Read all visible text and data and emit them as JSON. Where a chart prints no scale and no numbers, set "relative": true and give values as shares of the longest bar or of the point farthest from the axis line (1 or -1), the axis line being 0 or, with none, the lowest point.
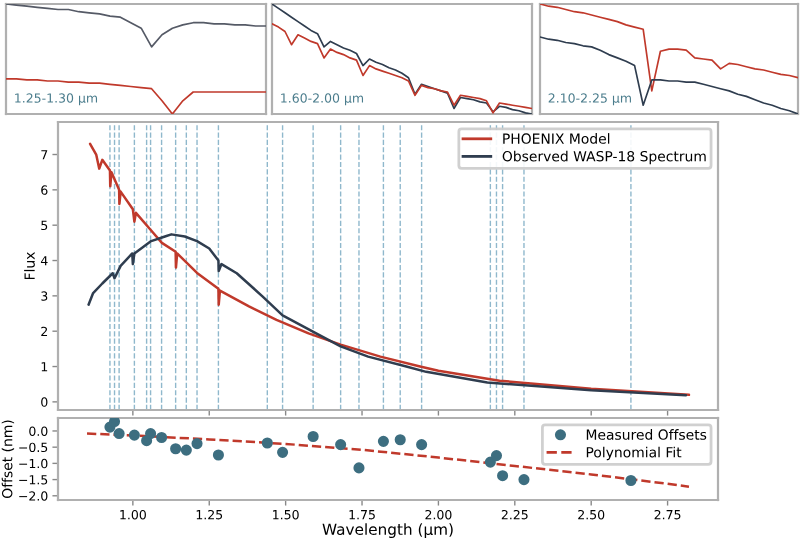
{
  "chart_data": [
    {
      "type": "line",
      "relative": true,
      "tick_labels": false,
      "annotations": [
        "1.25-1.30 μm"
      ],
      "categories": [
        null,
        null,
        null,
        null,
        null,
        null,
        null,
        null,
        null,
        null,
        null,
        null,
        null,
        null,
        null,
        null,
        null,
        null,
        null,
        null,
        null,
        null,
        null,
        null,
        null,
        null
      ],
      "series": [
        {
          "color": "#555a66",
          "values": [
            1.0,
            0.99,
            0.98,
            0.97,
            0.96,
            0.95,
            0.95,
            0.93,
            0.92,
            0.91,
            0.89,
            0.88,
            0.83,
            0.78,
            0.61,
            0.72,
            0.78,
            0.81,
            0.83,
            0.83,
            0.82,
            0.82,
            0.81,
            0.81,
            0.8,
            0.8
          ]
        },
        {
          "color": "#c0392b",
          "values": [
            0.32,
            0.32,
            0.31,
            0.31,
            0.3,
            0.3,
            0.29,
            0.29,
            0.28,
            0.28,
            0.27,
            0.26,
            0.25,
            0.24,
            0.23,
            0.12,
            0.0,
            0.12,
            0.2,
            0.2,
            0.2,
            0.2,
            0.2,
            0.2,
            0.2,
            0.2
          ]
        }
      ]
    },
    {
      "type": "line",
      "relative": true,
      "tick_labels": false,
      "annotations": [
        "1.60-2.00 μm"
      ],
      "categories": [
        null,
        null,
        null,
        null,
        null,
        null,
        null,
        null,
        null,
        null,
        null,
        null,
        null,
        null,
        null,
        null,
        null,
        null,
        null,
        null,
        null,
        null,
        null,
        null,
        null,
        null,
        null,
        null,
        null,
        null,
        null,
        null,
        null,
        null,
        null,
        null,
        null,
        null,
        null,
        null,
        null
      ],
      "series": [
        {
          "color": "#2f3d4f",
          "values": [
            1.0,
            0.96,
            0.92,
            0.88,
            0.84,
            0.8,
            0.76,
            0.73,
            0.61,
            0.66,
            0.63,
            0.6,
            0.58,
            0.55,
            0.44,
            0.5,
            0.47,
            0.45,
            0.42,
            0.4,
            0.37,
            0.33,
            0.18,
            0.27,
            0.25,
            0.23,
            0.21,
            0.19,
            0.05,
            0.15,
            0.14,
            0.13,
            0.11,
            0.1,
            0.02,
            0.07,
            0.06,
            0.04,
            0.03,
            0.01,
            0.0
          ]
        },
        {
          "color": "#c0392b",
          "values": [
            0.82,
            0.79,
            0.75,
            0.63,
            0.72,
            0.69,
            0.66,
            0.64,
            0.51,
            0.59,
            0.56,
            0.54,
            0.51,
            0.49,
            0.35,
            0.44,
            0.41,
            0.39,
            0.37,
            0.35,
            0.33,
            0.3,
            0.17,
            0.26,
            0.24,
            0.23,
            0.21,
            0.2,
            0.08,
            0.17,
            0.16,
            0.15,
            0.14,
            0.12,
            0.01,
            0.1,
            0.09,
            0.08,
            0.07,
            0.06,
            0.05
          ]
        }
      ]
    },
    {
      "type": "line",
      "relative": true,
      "tick_labels": false,
      "annotations": [
        "2.10-2.25 μm"
      ],
      "categories": [
        null,
        null,
        null,
        null,
        null,
        null,
        null,
        null,
        null,
        null,
        null,
        null,
        null,
        null,
        null,
        null,
        null,
        null,
        null,
        null,
        null,
        null,
        null,
        null,
        null,
        null,
        null,
        null,
        null,
        null,
        null
      ],
      "series": [
        {
          "color": "#c0392b",
          "values": [
            1.0,
            0.98,
            0.97,
            0.95,
            0.93,
            0.92,
            0.9,
            0.88,
            0.86,
            0.84,
            0.81,
            0.79,
            0.77,
            0.21,
            0.57,
            0.59,
            0.59,
            0.58,
            0.51,
            0.5,
            0.49,
            0.41,
            0.46,
            0.45,
            0.43,
            0.41,
            0.4,
            0.38,
            0.36,
            0.35,
            0.33
          ]
        },
        {
          "color": "#2f3d4f",
          "values": [
            0.7,
            0.68,
            0.67,
            0.65,
            0.64,
            0.62,
            0.61,
            0.58,
            0.54,
            0.51,
            0.48,
            0.44,
            0.08,
            0.31,
            0.31,
            0.3,
            0.3,
            0.29,
            0.29,
            0.27,
            0.25,
            0.23,
            0.21,
            0.18,
            0.16,
            0.13,
            0.1,
            0.08,
            0.05,
            0.03,
            0.0
          ]
        }
      ]
    },
    {
      "type": "line",
      "ylabel": "Flux",
      "xlim": [
        0.755,
        2.915
      ],
      "ylim": [
        -0.23,
        7.92
      ],
      "tick_labels": "y",
      "legend": "top right",
      "xticks": [
        {
          "value": 1.0,
          "label": null
        },
        {
          "value": 1.25,
          "label": null
        },
        {
          "value": 1.5,
          "label": null
        },
        {
          "value": 1.75,
          "label": null
        },
        {
          "value": 2.0,
          "label": null
        },
        {
          "value": 2.25,
          "label": null
        },
        {
          "value": 2.5,
          "label": null
        },
        {
          "value": 2.75,
          "label": null
        }
      ],
      "yticks": [
        0,
        1,
        2,
        3,
        4,
        5,
        6,
        7
      ],
      "ref_lines": [
        {
          "axis": "x",
          "value": 0.925,
          "color": "#8fb8cc",
          "line_style": "dashed"
        },
        {
          "axis": "x",
          "value": 0.94,
          "color": "#8fb8cc",
          "line_style": "dashed"
        },
        {
          "axis": "x",
          "value": 0.955,
          "color": "#8fb8cc",
          "line_style": "dashed"
        },
        {
          "axis": "x",
          "value": 1.005,
          "color": "#8fb8cc",
          "line_style": "dashed"
        },
        {
          "axis": "x",
          "value": 1.045,
          "color": "#8fb8cc",
          "line_style": "dashed"
        },
        {
          "axis": "x",
          "value": 1.058,
          "color": "#8fb8cc",
          "line_style": "dashed"
        },
        {
          "axis": "x",
          "value": 1.094,
          "color": "#8fb8cc",
          "line_style": "dashed"
        },
        {
          "axis": "x",
          "value": 1.14,
          "color": "#8fb8cc",
          "line_style": "dashed"
        },
        {
          "axis": "x",
          "value": 1.175,
          "color": "#8fb8cc",
          "line_style": "dashed"
        },
        {
          "axis": "x",
          "value": 1.21,
          "color": "#8fb8cc",
          "line_style": "dashed"
        },
        {
          "axis": "x",
          "value": 1.28,
          "color": "#8fb8cc",
          "line_style": "dashed"
        },
        {
          "axis": "x",
          "value": 1.44,
          "color": "#8fb8cc",
          "line_style": "dashed"
        },
        {
          "axis": "x",
          "value": 1.49,
          "color": "#8fb8cc",
          "line_style": "dashed"
        },
        {
          "axis": "x",
          "value": 1.59,
          "color": "#8fb8cc",
          "line_style": "dashed"
        },
        {
          "axis": "x",
          "value": 1.68,
          "color": "#8fb8cc",
          "line_style": "dashed"
        },
        {
          "axis": "x",
          "value": 1.74,
          "color": "#8fb8cc",
          "line_style": "dashed"
        },
        {
          "axis": "x",
          "value": 1.82,
          "color": "#8fb8cc",
          "line_style": "dashed"
        },
        {
          "axis": "x",
          "value": 1.875,
          "color": "#8fb8cc",
          "line_style": "dashed"
        },
        {
          "axis": "x",
          "value": 1.945,
          "color": "#8fb8cc",
          "line_style": "dashed"
        },
        {
          "axis": "x",
          "value": 2.17,
          "color": "#8fb8cc",
          "line_style": "dashed"
        },
        {
          "axis": "x",
          "value": 2.19,
          "color": "#8fb8cc",
          "line_style": "dashed"
        },
        {
          "axis": "x",
          "value": 2.21,
          "color": "#8fb8cc",
          "line_style": "dashed"
        },
        {
          "axis": "x",
          "value": 2.28,
          "color": "#8fb8cc",
          "line_style": "dashed"
        },
        {
          "axis": "x",
          "value": 2.63,
          "color": "#8fb8cc",
          "line_style": "dashed"
        }
      ],
      "series": [
        {
          "name": "PHOENIX Model",
          "color": "#c0392b",
          "x": [
            0.86,
            0.88,
            0.89,
            0.9,
            0.925,
            0.926,
            0.93,
            0.94,
            0.955,
            0.956,
            0.96,
            1.0,
            1.005,
            1.01,
            1.06,
            1.095,
            1.14,
            1.141,
            1.145,
            1.21,
            1.28,
            1.281,
            1.285,
            1.38,
            1.47,
            1.575,
            1.68,
            1.81,
            1.94,
            2.0,
            2.2,
            2.5,
            2.82
          ],
          "values": [
            7.3,
            7.0,
            6.6,
            6.85,
            6.55,
            6.1,
            6.5,
            6.3,
            6.0,
            5.6,
            5.95,
            5.45,
            5.1,
            5.35,
            4.85,
            4.5,
            4.25,
            3.8,
            4.2,
            3.65,
            3.2,
            2.75,
            3.15,
            2.7,
            2.32,
            1.94,
            1.62,
            1.28,
            1.0,
            0.88,
            0.6,
            0.37,
            0.2
          ]
        },
        {
          "name": "Observed WASP-18 Spectrum",
          "color": "#2f3d4f",
          "x": [
            0.855,
            0.87,
            0.9,
            0.934,
            0.94,
            0.96,
            0.998,
            1.0,
            1.005,
            1.06,
            1.105,
            1.126,
            1.17,
            1.21,
            1.25,
            1.28,
            1.281,
            1.29,
            1.34,
            1.425,
            1.49,
            1.6,
            1.68,
            1.77,
            1.895,
            1.96,
            2.16,
            2.5,
            2.81
          ],
          "values": [
            2.75,
            3.08,
            3.35,
            3.64,
            3.5,
            3.85,
            4.2,
            3.9,
            4.2,
            4.55,
            4.68,
            4.74,
            4.68,
            4.55,
            4.34,
            4.0,
            3.7,
            3.9,
            3.64,
            2.98,
            2.45,
            1.94,
            1.57,
            1.28,
            1.0,
            0.85,
            0.55,
            0.33,
            0.19
          ]
        }
      ]
    },
    {
      "type": "scatter",
      "xlabel": "Wavelength (μm)",
      "ylabel": "Offset (nm)",
      "xlim": [
        0.755,
        2.915
      ],
      "ylim": [
        -2.13,
        0.4
      ],
      "legend": "top right",
      "xticks": [
        {
          "value": 1.0,
          "label": "1.00"
        },
        {
          "value": 1.25,
          "label": "1.25"
        },
        {
          "value": 1.5,
          "label": "1.50"
        },
        {
          "value": 1.75,
          "label": "1.75"
        },
        {
          "value": 2.0,
          "label": "2.00"
        },
        {
          "value": 2.25,
          "label": "2.25"
        },
        {
          "value": 2.5,
          "label": "2.50"
        },
        {
          "value": 2.75,
          "label": "2.75"
        }
      ],
      "yticks": [
        {
          "value": -2.0,
          "label": "−2.0"
        },
        {
          "value": -1.5,
          "label": "−1.5"
        },
        {
          "value": -1.0,
          "label": "−1.0"
        },
        {
          "value": -0.5,
          "label": "−0.5"
        },
        {
          "value": 0.0,
          "label": "0.0"
        }
      ],
      "series": [
        {
          "name": "Measured Offsets",
          "type": "scatter",
          "marker": "circle",
          "color": "#3d6e80",
          "x": [
            0.925,
            0.94,
            0.955,
            1.005,
            1.045,
            1.058,
            1.094,
            1.14,
            1.175,
            1.21,
            1.28,
            1.44,
            1.49,
            1.59,
            1.68,
            1.74,
            1.82,
            1.875,
            1.945,
            2.17,
            2.19,
            2.21,
            2.28,
            2.63
          ],
          "values": [
            0.12,
            0.29,
            -0.08,
            -0.13,
            -0.3,
            -0.08,
            -0.2,
            -0.55,
            -0.59,
            -0.39,
            -0.74,
            -0.37,
            -0.66,
            -0.17,
            -0.42,
            -1.14,
            -0.32,
            -0.27,
            -0.42,
            -0.96,
            -0.76,
            -1.38,
            -1.5,
            -1.53
          ]
        },
        {
          "name": "Polynomial Fit",
          "type": "line",
          "line_style": "dashed",
          "color": "#c0392b",
          "x": [
            0.85,
            1.0,
            1.25,
            1.5,
            1.75,
            2.0,
            2.25,
            2.5,
            2.75,
            2.82
          ],
          "values": [
            -0.08,
            -0.14,
            -0.26,
            -0.4,
            -0.58,
            -0.82,
            -1.08,
            -1.34,
            -1.63,
            -1.72
          ]
        }
      ]
    }
  ]
}
